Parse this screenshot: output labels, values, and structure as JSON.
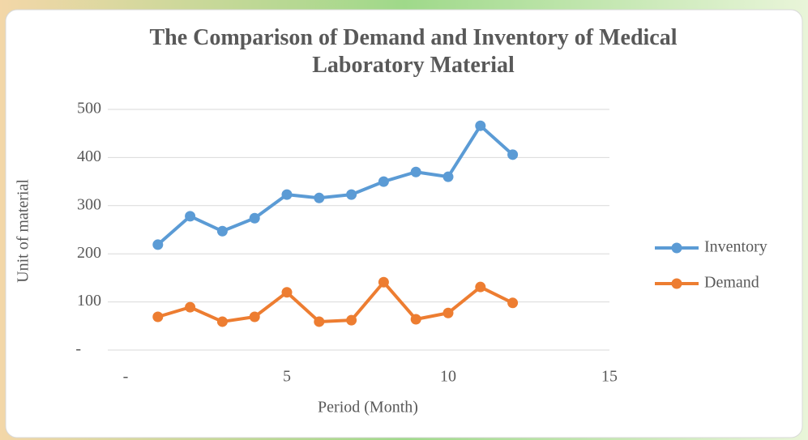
{
  "chart_data": {
    "type": "line",
    "title": "The Comparison of Demand and Inventory of Medical Laboratory Material",
    "x_label": "Period (Month)",
    "y_label": "Unit of material",
    "x": [
      1,
      2,
      3,
      4,
      5,
      6,
      7,
      8,
      9,
      10,
      11,
      12
    ],
    "series": [
      {
        "name": "Inventory",
        "color": "#5b9bd5",
        "values": [
          219,
          278,
          247,
          274,
          323,
          316,
          323,
          350,
          370,
          360,
          466,
          406
        ]
      },
      {
        "name": "Demand",
        "color": "#ed7d31",
        "values": [
          69,
          89,
          59,
          69,
          120,
          59,
          62,
          141,
          64,
          77,
          131,
          98
        ]
      }
    ],
    "xlim": [
      0,
      15
    ],
    "xticks": [
      {
        "value": 0,
        "label": "-"
      },
      5,
      10,
      15
    ],
    "ylim": [
      0,
      500
    ],
    "yticks": [
      {
        "value": 0,
        "label": "-"
      },
      100,
      200,
      300,
      400,
      500
    ],
    "grid": true,
    "legend": "right"
  }
}
